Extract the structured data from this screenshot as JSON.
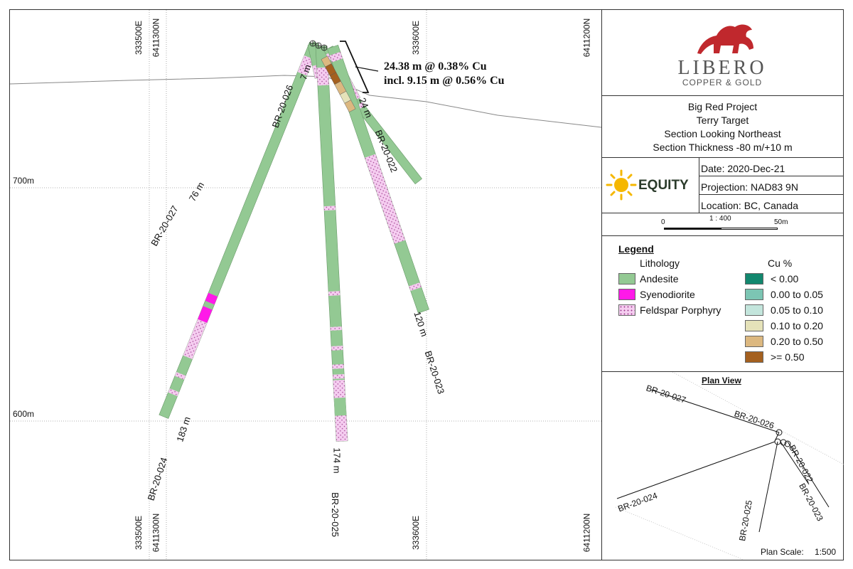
{
  "brand": {
    "name": "LIBERO",
    "tagline": "COPPER & GOLD",
    "partner_logo": "EQUITY"
  },
  "title_block": {
    "lines": [
      "Big Red Project",
      "Terry Target",
      "Section Looking Northeast",
      "Section Thickness -80 m/+10 m"
    ]
  },
  "info": {
    "date": "Date: 2020-Dec-21",
    "projection": "Projection: NAD83 9N",
    "location": "Location: BC, Canada"
  },
  "scale": {
    "ratio": "1 : 400",
    "start": "0",
    "end": "50m"
  },
  "legend": {
    "title": "Legend",
    "lithology_header": "Lithology",
    "cu_header": "Cu %",
    "lithology": [
      {
        "label": "Andesite",
        "color": "#93c993",
        "pattern": "solid"
      },
      {
        "label": "Syenodiorite",
        "color": "#ff19e8",
        "pattern": "solid"
      },
      {
        "label": "Feldspar Porphyry",
        "color": "#f5cdf0",
        "pattern": "dots"
      }
    ],
    "cu": [
      {
        "label": "< 0.00",
        "color": "#12876e"
      },
      {
        "label": "0.00 to 0.05",
        "color": "#7cc5b3"
      },
      {
        "label": "0.05 to 0.10",
        "color": "#c3e5dc"
      },
      {
        "label": "0.10 to 0.20",
        "color": "#e5e2b9"
      },
      {
        "label": "0.20 to 0.50",
        "color": "#dcb880"
      },
      {
        "label": ">= 0.50",
        "color": "#a4601f"
      }
    ]
  },
  "plan_view": {
    "title": "Plan View",
    "scale_label": "Plan Scale:",
    "scale_value": "1:500",
    "holes": [
      "BR-20-027",
      "BR-20-026",
      "BR-20-022",
      "BR-20-023",
      "BR-20-025",
      "BR-20-024"
    ]
  },
  "section": {
    "grid_top": [
      "333500E",
      "6411300N",
      "333600E",
      "6411200N"
    ],
    "grid_bottom": [
      "333500E",
      "6411300N",
      "333600E",
      "6411200N"
    ],
    "elevations": [
      "700m",
      "600m"
    ],
    "intercept_line1": "24.38 m @ 0.38% Cu",
    "intercept_line2": "incl. 9.15 m @ 0.56% Cu",
    "holes": [
      {
        "name": "BR-20-027",
        "depth": "76 m"
      },
      {
        "name": "BR-20-026",
        "depth": "7 m"
      },
      {
        "name": "BR-20-022",
        "depth": "24 m"
      },
      {
        "name": "BR-20-023",
        "depth": "120 m"
      },
      {
        "name": "BR-20-025",
        "depth": "174 m"
      },
      {
        "name": "BR-20-024",
        "depth": "183 m"
      }
    ]
  }
}
